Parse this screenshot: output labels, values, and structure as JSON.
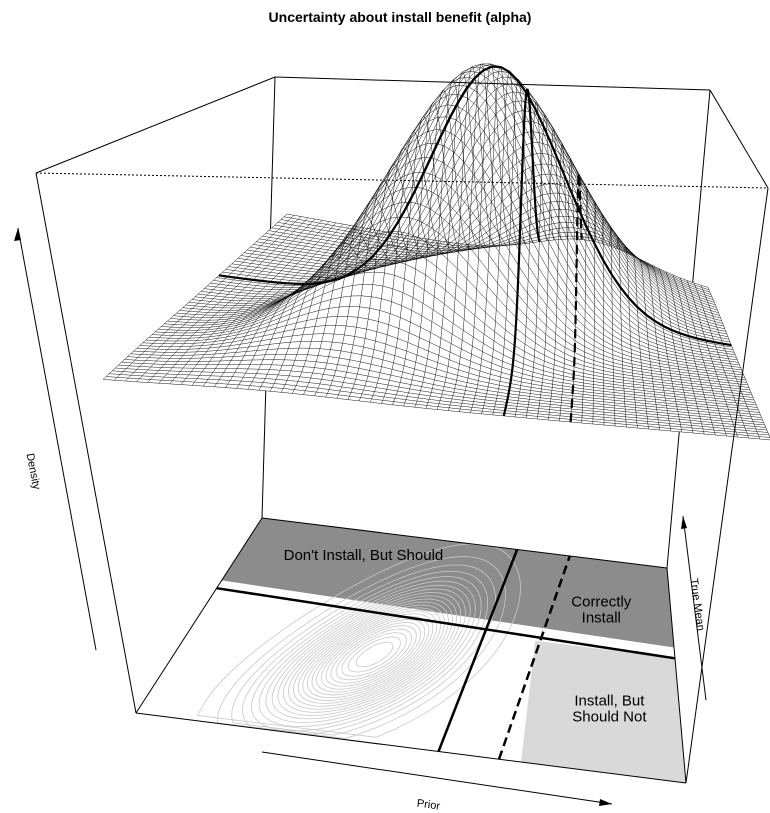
{
  "chart_data": {
    "type": "surface3d",
    "title": "Uncertainty about install benefit (alpha)",
    "axes": {
      "x_label": "Prior",
      "y_label": "True Mean",
      "z_label": "Density"
    },
    "regions": [
      {
        "label_lines": [
          "Don't Install, But Should"
        ],
        "fill": "#8c8c8c"
      },
      {
        "label_lines": [
          "Correctly",
          "Install"
        ],
        "fill": "#8c8c8c"
      },
      {
        "label_lines": [
          "Install, But",
          "Should Not"
        ],
        "fill": "#d9d9d9"
      }
    ],
    "thresholds": [
      {
        "style": "solid"
      },
      {
        "style": "dashed"
      }
    ],
    "surface": {
      "distribution": "bivariate-normal",
      "rho": 0.6
    },
    "contour_levels": [
      0.04,
      0.08,
      0.12,
      0.16,
      0.2,
      0.24,
      0.28,
      0.32,
      0.36,
      0.4,
      0.44,
      0.48,
      0.52,
      0.56,
      0.6,
      0.64,
      0.68,
      0.72,
      0.76,
      0.8,
      0.84,
      0.88,
      0.92,
      0.96
    ],
    "colors": {
      "surface_line": "#000000",
      "contour": "#c8c8c8",
      "dark_region": "#8c8c8c",
      "light_region": "#d9d9d9"
    }
  }
}
